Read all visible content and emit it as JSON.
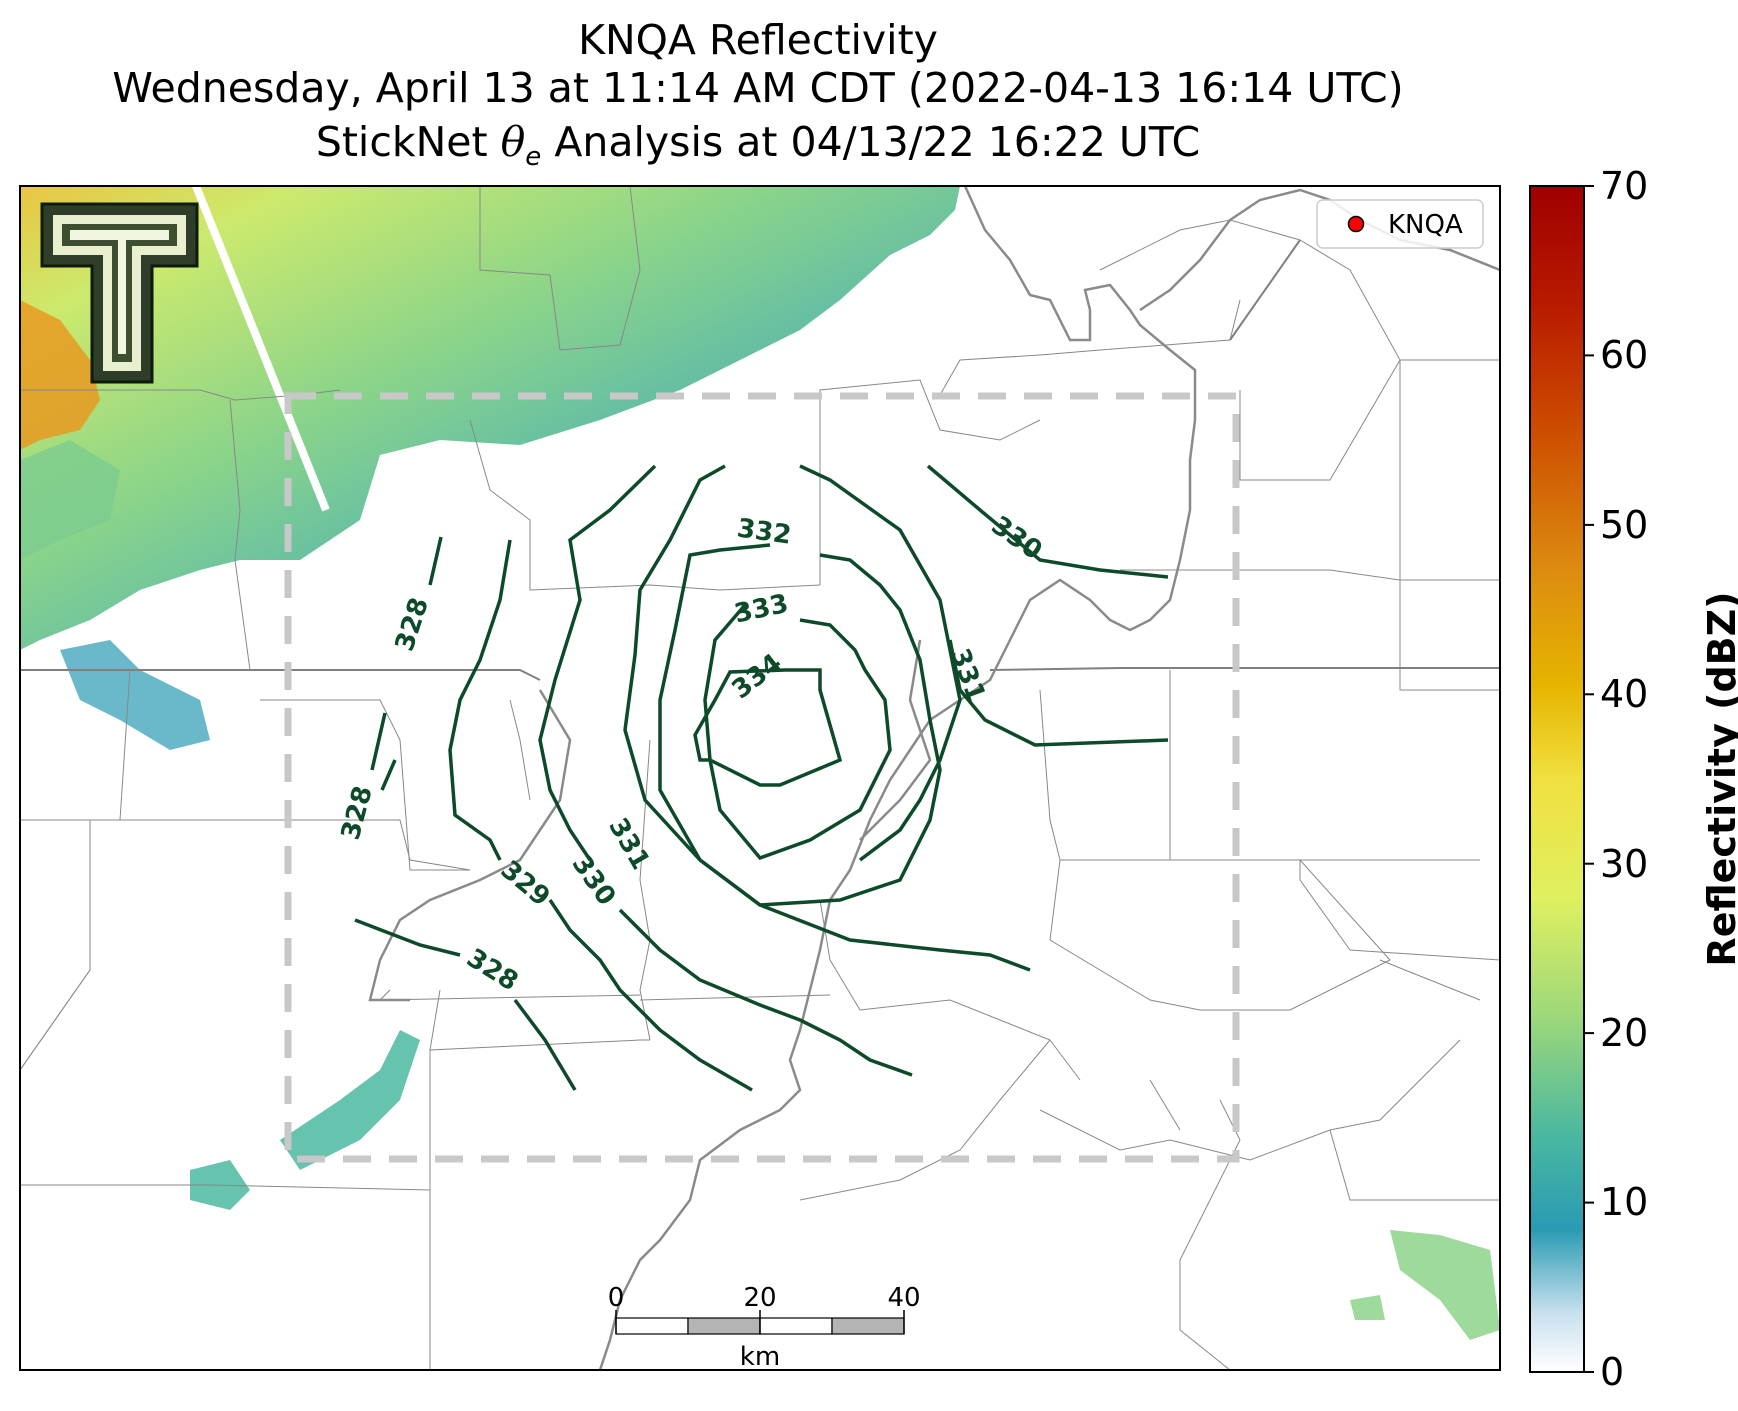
{
  "title": {
    "line1": "KNQA Reflectivity",
    "line2": "Wednesday, April 13 at 11:14 AM CDT (2022-04-13 16:14 UTC)",
    "line3_prefix": "StickNet ",
    "line3_symbol": "θ",
    "line3_subscript": "e",
    "line3_suffix": " Analysis at 04/13/22 16:22 UTC"
  },
  "legend": {
    "label": "KNQA",
    "marker_color": "#ff0000"
  },
  "logo": {
    "text": "T",
    "name": "Texas Tech double-T logo"
  },
  "colorbar": {
    "label": "Reflectivity (dBZ)",
    "min": 0,
    "max": 70,
    "ticks": [
      "0",
      "10",
      "20",
      "30",
      "40",
      "50",
      "60",
      "70"
    ]
  },
  "scale_bar": {
    "ticks": [
      "0",
      "20",
      "40"
    ],
    "unit": "km"
  },
  "contours": {
    "color": "#0d4a2a",
    "labels": [
      "328",
      "328",
      "328",
      "329",
      "330",
      "330",
      "331",
      "331",
      "332",
      "333",
      "334"
    ]
  },
  "colors": {
    "accent": "#0d4a2a",
    "analysis_box": "#c8c8c8",
    "range_ring": "#ffffff"
  }
}
